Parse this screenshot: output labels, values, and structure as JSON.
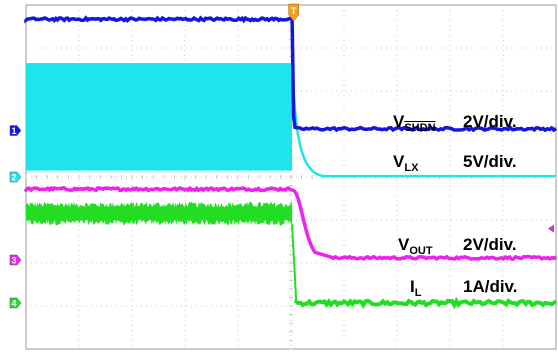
{
  "chart_data": {
    "type": "line",
    "title": "",
    "xlabel": "",
    "ylabel": "",
    "grid": true,
    "x_divisions": 10,
    "y_divisions": 8,
    "x_range_div": [
      0,
      10
    ],
    "y_range_div": [
      0,
      8
    ],
    "trigger_time_div": 5.05,
    "series": [
      {
        "key": "ch1",
        "marker": "1",
        "label_main": "V",
        "label_sub": "SHDN",
        "label_sub_overline": true,
        "scale": "2V/div.",
        "color": "#1515e0",
        "ground_div": 5.08,
        "before_level_div": 7.67,
        "after_level_div": 5.12,
        "noise_div": 0.03,
        "points": [
          [
            0,
            7.67
          ],
          [
            5.02,
            7.67
          ],
          [
            5.08,
            5.12
          ],
          [
            10,
            5.12
          ]
        ]
      },
      {
        "key": "ch2",
        "marker": "2",
        "label_main": "V",
        "label_sub": "LX",
        "label_sub_overline": false,
        "scale": "5V/div.",
        "color": "#20e4ec",
        "ground_div": 4.0,
        "switching_high_div": 6.65,
        "switching_low_div": 4.15,
        "after_level_div": 4.02,
        "points": [
          [
            0,
            6.65
          ],
          [
            5.02,
            6.65
          ],
          [
            5.1,
            4.9
          ],
          [
            5.5,
            4.05
          ],
          [
            10,
            4.02
          ]
        ]
      },
      {
        "key": "ch3",
        "marker": "3",
        "label_main": "V",
        "label_sub": "OUT",
        "label_sub_overline": false,
        "scale": "2V/div.",
        "color": "#ee22ee",
        "ground_div": 2.07,
        "before_level_div": 3.72,
        "after_level_div": 2.12,
        "noise_div": 0.03,
        "points": [
          [
            0,
            3.72
          ],
          [
            5.05,
            3.72
          ],
          [
            5.15,
            3.3
          ],
          [
            5.45,
            2.25
          ],
          [
            5.8,
            2.12
          ],
          [
            10,
            2.12
          ]
        ]
      },
      {
        "key": "ch4",
        "marker": "4",
        "label_main": "I",
        "label_sub": "L",
        "label_sub_overline": false,
        "scale": "1A/div.",
        "color": "#22dd22",
        "ground_div": 1.07,
        "before_level_div": 3.2,
        "before_ripple_div": 0.32,
        "after_level_div": 1.07,
        "noise_div": 0.05,
        "points": [
          [
            0,
            3.2
          ],
          [
            5.02,
            3.2
          ],
          [
            5.1,
            1.07
          ],
          [
            10,
            1.07
          ]
        ]
      }
    ]
  }
}
